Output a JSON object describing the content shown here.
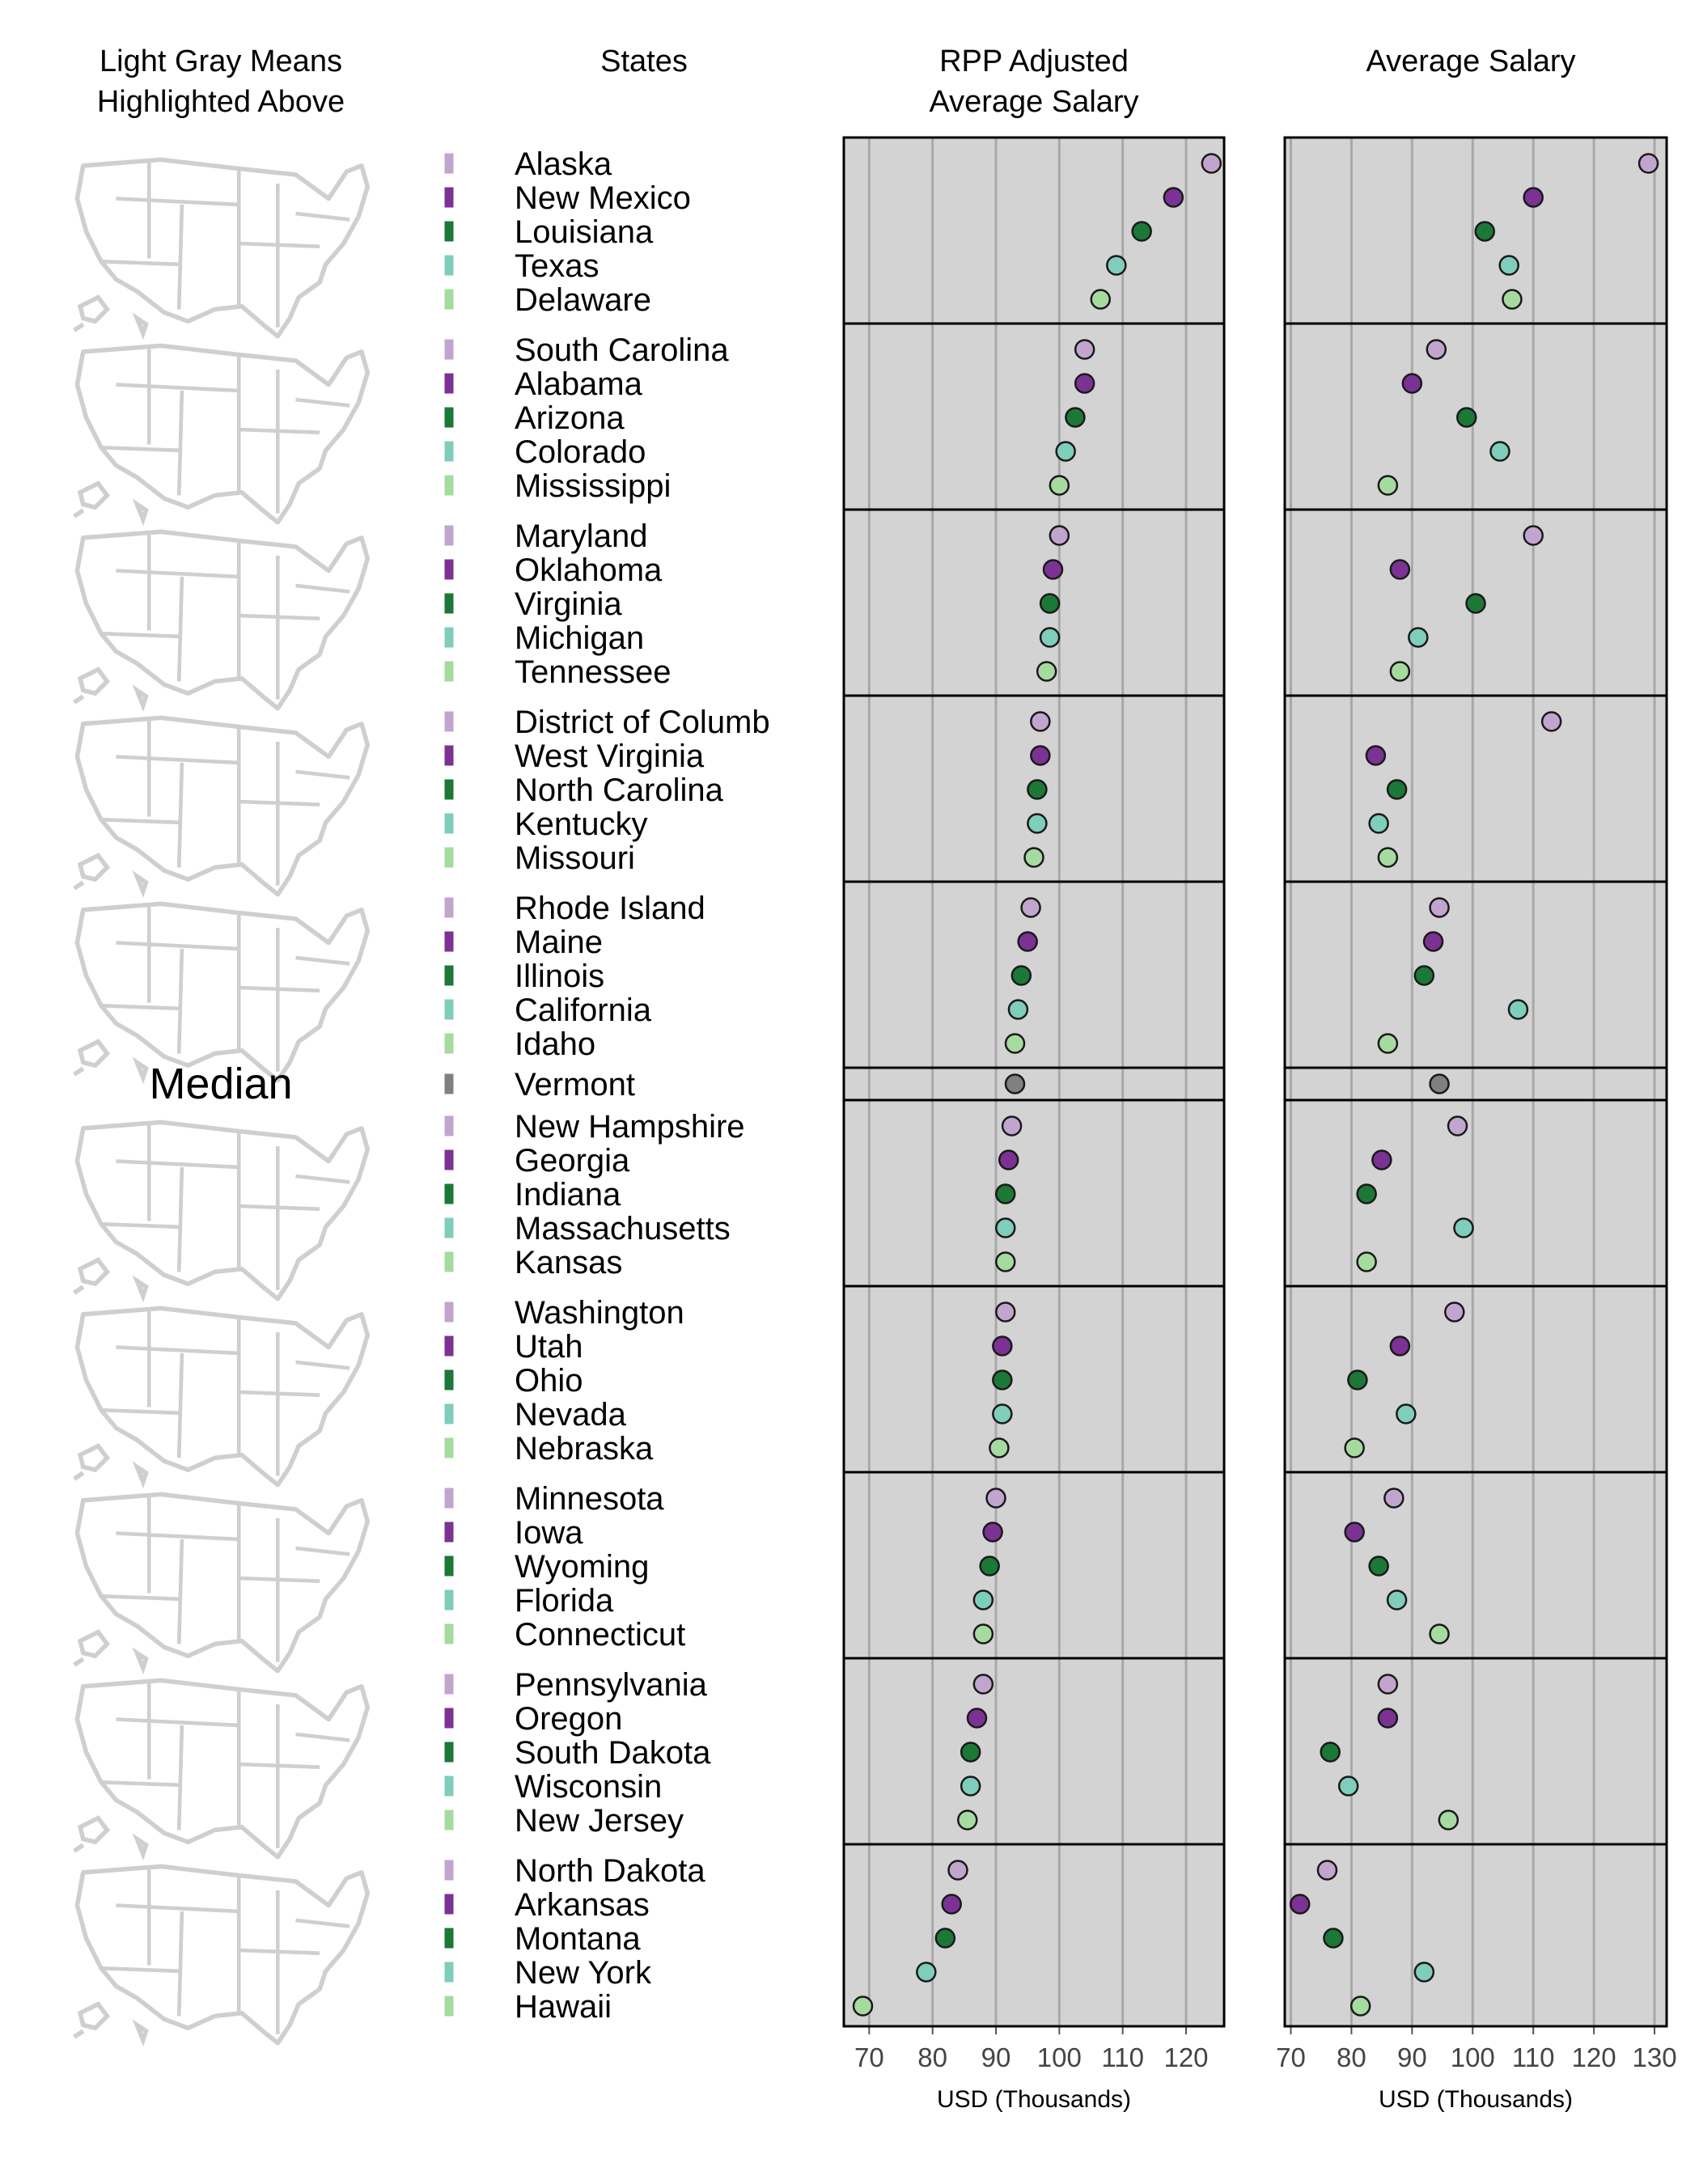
{
  "chart_data": {
    "type": "scatter",
    "headers": {
      "maps": [
        "Light Gray Means",
        "Highlighted Above"
      ],
      "states": "States",
      "rpp": [
        "RPP Adjusted",
        "Average Salary"
      ],
      "avg": "Average Salary"
    },
    "median_label": "Median",
    "xlabel": "USD (Thousands)",
    "panels": {
      "rpp": {
        "xlim": [
          66,
          126
        ],
        "ticks": [
          70,
          80,
          90,
          100,
          110,
          120
        ]
      },
      "avg": {
        "xlim": [
          69,
          132
        ],
        "ticks": [
          70,
          80,
          90,
          100,
          110,
          120,
          130
        ]
      }
    },
    "colors": {
      "c1": "#c2a5cf",
      "c2": "#7b3294",
      "c3": "#1b7837",
      "c4": "#7fcdbb",
      "c5": "#a6dba0",
      "median": "#808080",
      "panel_bg": "#d3d3d3"
    },
    "groups": [
      {
        "states": [
          {
            "name": "Alaska",
            "rpp": 124,
            "avg": 129
          },
          {
            "name": "New Mexico",
            "rpp": 118,
            "avg": 110
          },
          {
            "name": "Louisiana",
            "rpp": 113,
            "avg": 102
          },
          {
            "name": "Texas",
            "rpp": 109,
            "avg": 106
          },
          {
            "name": "Delaware",
            "rpp": 106.5,
            "avg": 106.5
          }
        ]
      },
      {
        "states": [
          {
            "name": "South Carolina",
            "rpp": 104,
            "avg": 94
          },
          {
            "name": "Alabama",
            "rpp": 104,
            "avg": 90
          },
          {
            "name": "Arizona",
            "rpp": 102.5,
            "avg": 99
          },
          {
            "name": "Colorado",
            "rpp": 101,
            "avg": 104.5
          },
          {
            "name": "Mississippi",
            "rpp": 100,
            "avg": 86
          }
        ]
      },
      {
        "states": [
          {
            "name": "Maryland",
            "rpp": 100,
            "avg": 110
          },
          {
            "name": "Oklahoma",
            "rpp": 99,
            "avg": 88
          },
          {
            "name": "Virginia",
            "rpp": 98.5,
            "avg": 100.5
          },
          {
            "name": "Michigan",
            "rpp": 98.5,
            "avg": 91
          },
          {
            "name": "Tennessee",
            "rpp": 98,
            "avg": 88
          }
        ]
      },
      {
        "states": [
          {
            "name": "District of Columb",
            "rpp": 97,
            "avg": 113
          },
          {
            "name": "West Virginia",
            "rpp": 97,
            "avg": 84
          },
          {
            "name": "North Carolina",
            "rpp": 96.5,
            "avg": 87.5
          },
          {
            "name": "Kentucky",
            "rpp": 96.5,
            "avg": 84.5
          },
          {
            "name": "Missouri",
            "rpp": 96,
            "avg": 86
          }
        ]
      },
      {
        "states": [
          {
            "name": "Rhode Island",
            "rpp": 95.5,
            "avg": 94.5
          },
          {
            "name": "Maine",
            "rpp": 95,
            "avg": 93.5
          },
          {
            "name": "Illinois",
            "rpp": 94,
            "avg": 92
          },
          {
            "name": "California",
            "rpp": 93.5,
            "avg": 107.5
          },
          {
            "name": "Idaho",
            "rpp": 93,
            "avg": 86
          }
        ]
      },
      {
        "median": true,
        "states": [
          {
            "name": "Vermont",
            "rpp": 93,
            "avg": 94.5
          }
        ]
      },
      {
        "states": [
          {
            "name": "New Hampshire",
            "rpp": 92.5,
            "avg": 97.5
          },
          {
            "name": "Georgia",
            "rpp": 92,
            "avg": 85
          },
          {
            "name": "Indiana",
            "rpp": 91.5,
            "avg": 82.5
          },
          {
            "name": "Massachusetts",
            "rpp": 91.5,
            "avg": 98.5
          },
          {
            "name": "Kansas",
            "rpp": 91.5,
            "avg": 82.5
          }
        ]
      },
      {
        "states": [
          {
            "name": "Washington",
            "rpp": 91.5,
            "avg": 97
          },
          {
            "name": "Utah",
            "rpp": 91,
            "avg": 88
          },
          {
            "name": "Ohio",
            "rpp": 91,
            "avg": 81
          },
          {
            "name": "Nevada",
            "rpp": 91,
            "avg": 89
          },
          {
            "name": "Nebraska",
            "rpp": 90.5,
            "avg": 80.5
          }
        ]
      },
      {
        "states": [
          {
            "name": "Minnesota",
            "rpp": 90,
            "avg": 87
          },
          {
            "name": "Iowa",
            "rpp": 89.5,
            "avg": 80.5
          },
          {
            "name": "Wyoming",
            "rpp": 89,
            "avg": 84.5
          },
          {
            "name": "Florida",
            "rpp": 88,
            "avg": 87.5
          },
          {
            "name": "Connecticut",
            "rpp": 88,
            "avg": 94.5
          }
        ]
      },
      {
        "states": [
          {
            "name": "Pennsylvania",
            "rpp": 88,
            "avg": 86
          },
          {
            "name": "Oregon",
            "rpp": 87,
            "avg": 86
          },
          {
            "name": "South Dakota",
            "rpp": 86,
            "avg": 76.5
          },
          {
            "name": "Wisconsin",
            "rpp": 86,
            "avg": 79.5
          },
          {
            "name": "New Jersey",
            "rpp": 85.5,
            "avg": 96
          }
        ]
      },
      {
        "states": [
          {
            "name": "North Dakota",
            "rpp": 84,
            "avg": 76
          },
          {
            "name": "Arkansas",
            "rpp": 83,
            "avg": 71.5
          },
          {
            "name": "Montana",
            "rpp": 82,
            "avg": 77
          },
          {
            "name": "New York",
            "rpp": 79,
            "avg": 92
          },
          {
            "name": "Hawaii",
            "rpp": 69,
            "avg": 81.5
          }
        ]
      }
    ]
  }
}
